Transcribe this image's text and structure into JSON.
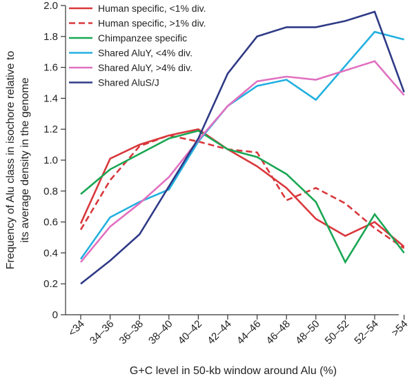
{
  "chart_data": {
    "type": "line",
    "xlabel": "G+C level in 50-kb window around Alu (%)",
    "ylabel": [
      "Frequency of Alu class in isochore relative to",
      "its average density in the genome"
    ],
    "ylim": [
      0,
      2.0
    ],
    "yticks": [
      "0",
      "0.2",
      "0.4",
      "0.6",
      "0.8",
      "1.0",
      "1.2",
      "1.4",
      "1.6",
      "1.8",
      "2.0"
    ],
    "categories": [
      "<34",
      "34–36",
      "36–38",
      "38–40",
      "40–42",
      "42–44",
      "44–46",
      "46–48",
      "48–50",
      "50–52",
      "52–54",
      ">54"
    ],
    "grid": false,
    "legend_position": "top-left",
    "series": [
      {
        "name": "Human specific, <1% div.",
        "color": "#d9373b",
        "dash": false,
        "values": [
          0.59,
          1.01,
          1.1,
          1.16,
          1.2,
          1.07,
          0.96,
          0.82,
          0.62,
          0.51,
          0.6,
          0.44
        ]
      },
      {
        "name": "Human specific, >1% div.",
        "color": "#d9373b",
        "dash": true,
        "values": [
          0.55,
          0.87,
          1.09,
          1.16,
          1.12,
          1.07,
          1.05,
          0.74,
          0.82,
          0.72,
          0.56,
          0.43
        ]
      },
      {
        "name": "Chimpanzee specific",
        "color": "#19a653",
        "dash": false,
        "values": [
          0.78,
          0.94,
          1.04,
          1.14,
          1.19,
          1.07,
          1.02,
          0.91,
          0.73,
          0.34,
          0.65,
          0.4
        ]
      },
      {
        "name": "Shared AluY, <4% div.",
        "color": "#22b0e0",
        "dash": false,
        "values": [
          0.36,
          0.63,
          0.73,
          0.81,
          1.12,
          1.35,
          1.48,
          1.52,
          1.39,
          1.61,
          1.83,
          1.78
        ]
      },
      {
        "name": "Shared AluY, >4% div.",
        "color": "#e070c0",
        "dash": false,
        "values": [
          0.34,
          0.57,
          0.72,
          0.89,
          1.13,
          1.35,
          1.51,
          1.54,
          1.52,
          1.58,
          1.64,
          1.42
        ]
      },
      {
        "name": "Shared AluS/J",
        "color": "#2f3a86",
        "dash": false,
        "values": [
          0.2,
          0.35,
          0.52,
          0.83,
          1.14,
          1.56,
          1.8,
          1.86,
          1.86,
          1.9,
          1.96,
          1.44
        ]
      }
    ]
  }
}
